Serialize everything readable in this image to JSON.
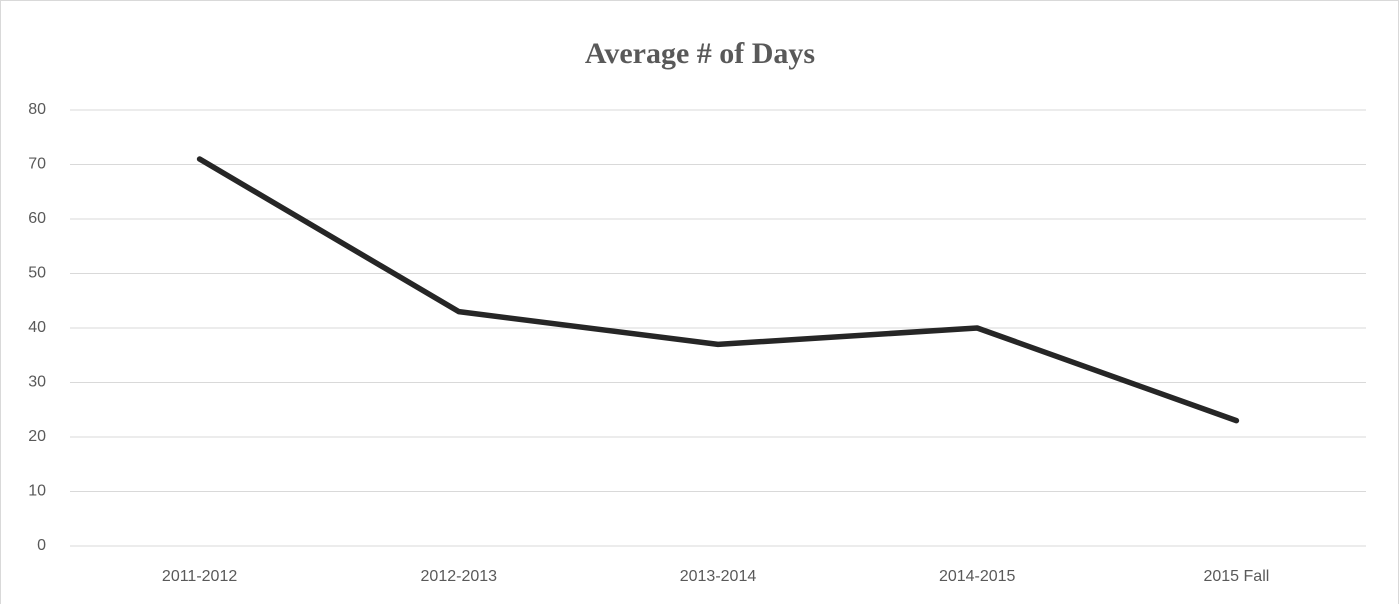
{
  "chart_data": {
    "type": "line",
    "title": "Average # of Days",
    "categories": [
      "2011-2012",
      "2012-2013",
      "2013-2014",
      "2014-2015",
      "2015 Fall"
    ],
    "series": [
      {
        "name": "Average # of Days",
        "color": "#262626",
        "values": [
          71,
          43,
          37,
          40,
          23
        ]
      }
    ],
    "ylim": [
      0,
      80
    ],
    "yticks": [
      0,
      10,
      20,
      30,
      40,
      50,
      60,
      70,
      80
    ],
    "grid": true
  }
}
